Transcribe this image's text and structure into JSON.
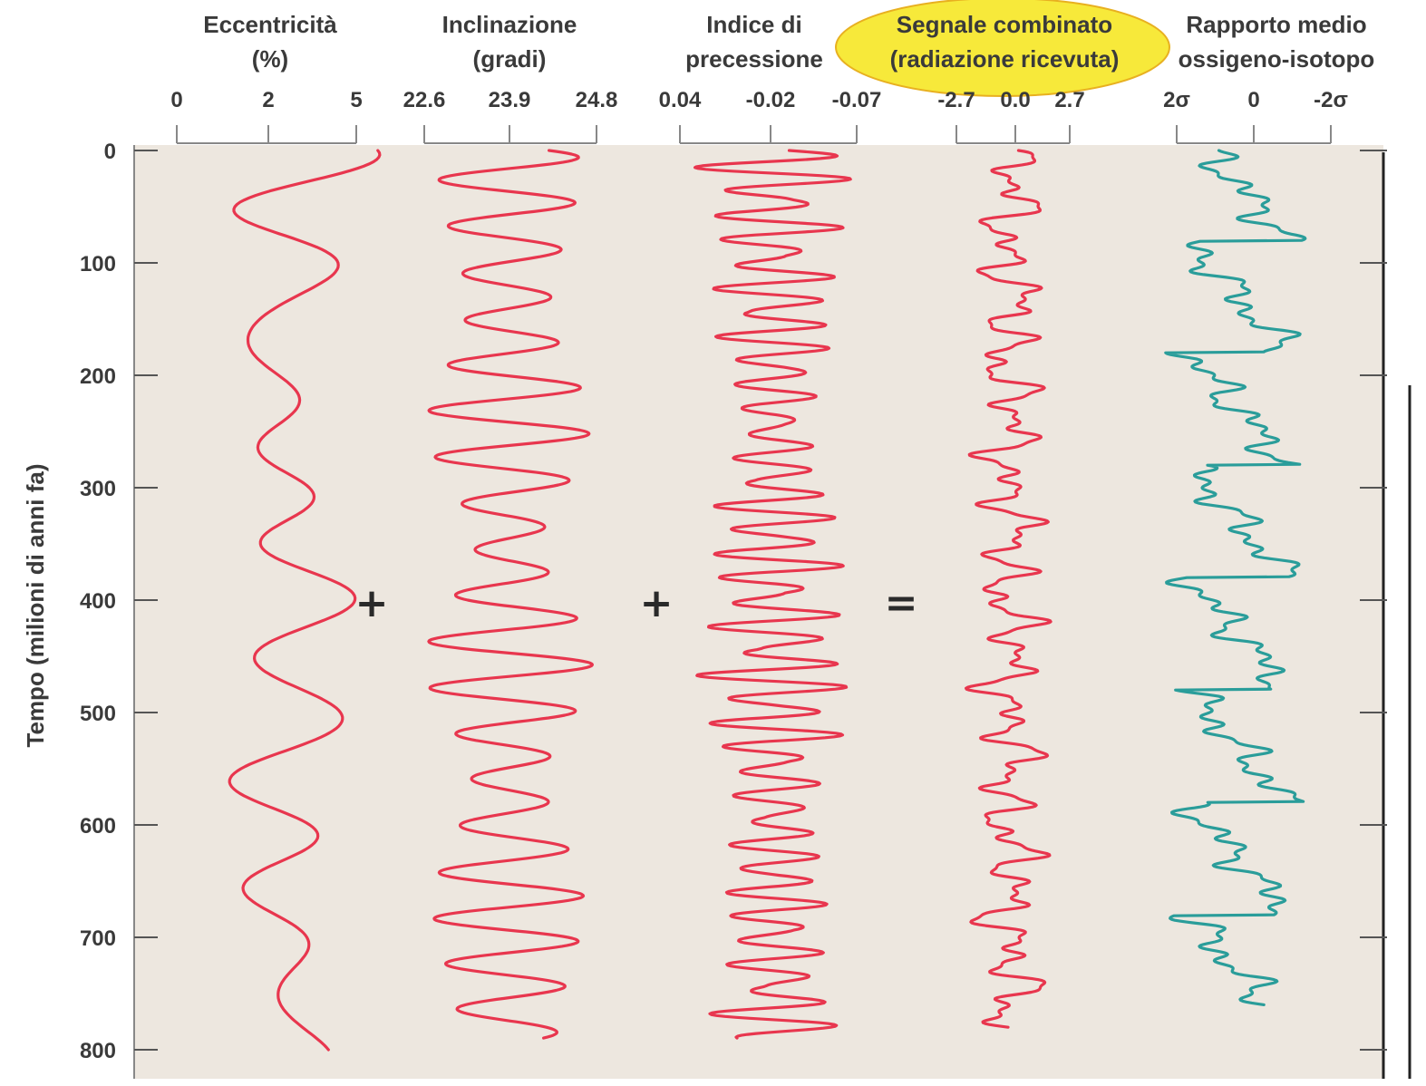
{
  "chart_data": {
    "type": "line",
    "ylabel": "Tempo (milioni di anni fa)",
    "y_axis": {
      "ticks": [
        "0",
        "100",
        "200",
        "300",
        "400",
        "500",
        "600",
        "700",
        "800"
      ],
      "range": [
        0,
        800
      ],
      "inverted": true
    },
    "operators": [
      "+",
      "+",
      "="
    ],
    "highlight_color": "#f7e93a",
    "line_color_red": "#e8364e",
    "line_color_teal": "#2a9d9a",
    "plot_background": "#ede7df",
    "panels": [
      {
        "title_lines": [
          "Eccentricità",
          "(%)"
        ],
        "tick_labels": [
          "0",
          "2",
          "5"
        ],
        "tick_values": [
          0,
          2,
          5
        ],
        "range": [
          0,
          5
        ],
        "color": "#e8364e",
        "highlighted": false,
        "series": {
          "kind": "eccentricity",
          "seed": 11
        }
      },
      {
        "title_lines": [
          "Inclinazione",
          "(gradi)"
        ],
        "tick_labels": [
          "22.6",
          "23.9",
          "24.8"
        ],
        "tick_values": [
          22.6,
          23.9,
          24.8
        ],
        "range": [
          22.6,
          24.8
        ],
        "color": "#e8364e",
        "highlighted": false,
        "series": {
          "kind": "obliquity",
          "seed": 23
        }
      },
      {
        "title_lines": [
          "Indice di",
          "precessione"
        ],
        "tick_labels": [
          "0.04",
          "-0.02",
          "-0.07"
        ],
        "tick_values": [
          0.04,
          -0.02,
          -0.07
        ],
        "range": [
          0.04,
          -0.07
        ],
        "color": "#e8364e",
        "highlighted": false,
        "series": {
          "kind": "precession",
          "seed": 37
        }
      },
      {
        "title_lines": [
          "Segnale combinato",
          "(radiazione ricevuta)"
        ],
        "tick_labels": [
          "-2.7",
          "0.0",
          "2.7"
        ],
        "tick_values": [
          -2.7,
          0,
          2.7
        ],
        "range": [
          -2.7,
          2.7
        ],
        "color": "#e8364e",
        "highlighted": true,
        "series": {
          "kind": "combined",
          "seed": 41
        }
      },
      {
        "title_lines": [
          "Rapporto medio",
          "ossigeno-isotopo"
        ],
        "tick_labels": [
          "2σ",
          "0",
          "-2σ"
        ],
        "tick_values": [
          2,
          0,
          -2
        ],
        "range": [
          2,
          -2
        ],
        "color": "#2a9d9a",
        "highlighted": false,
        "series": {
          "kind": "isotope",
          "seed": 53
        }
      }
    ]
  }
}
